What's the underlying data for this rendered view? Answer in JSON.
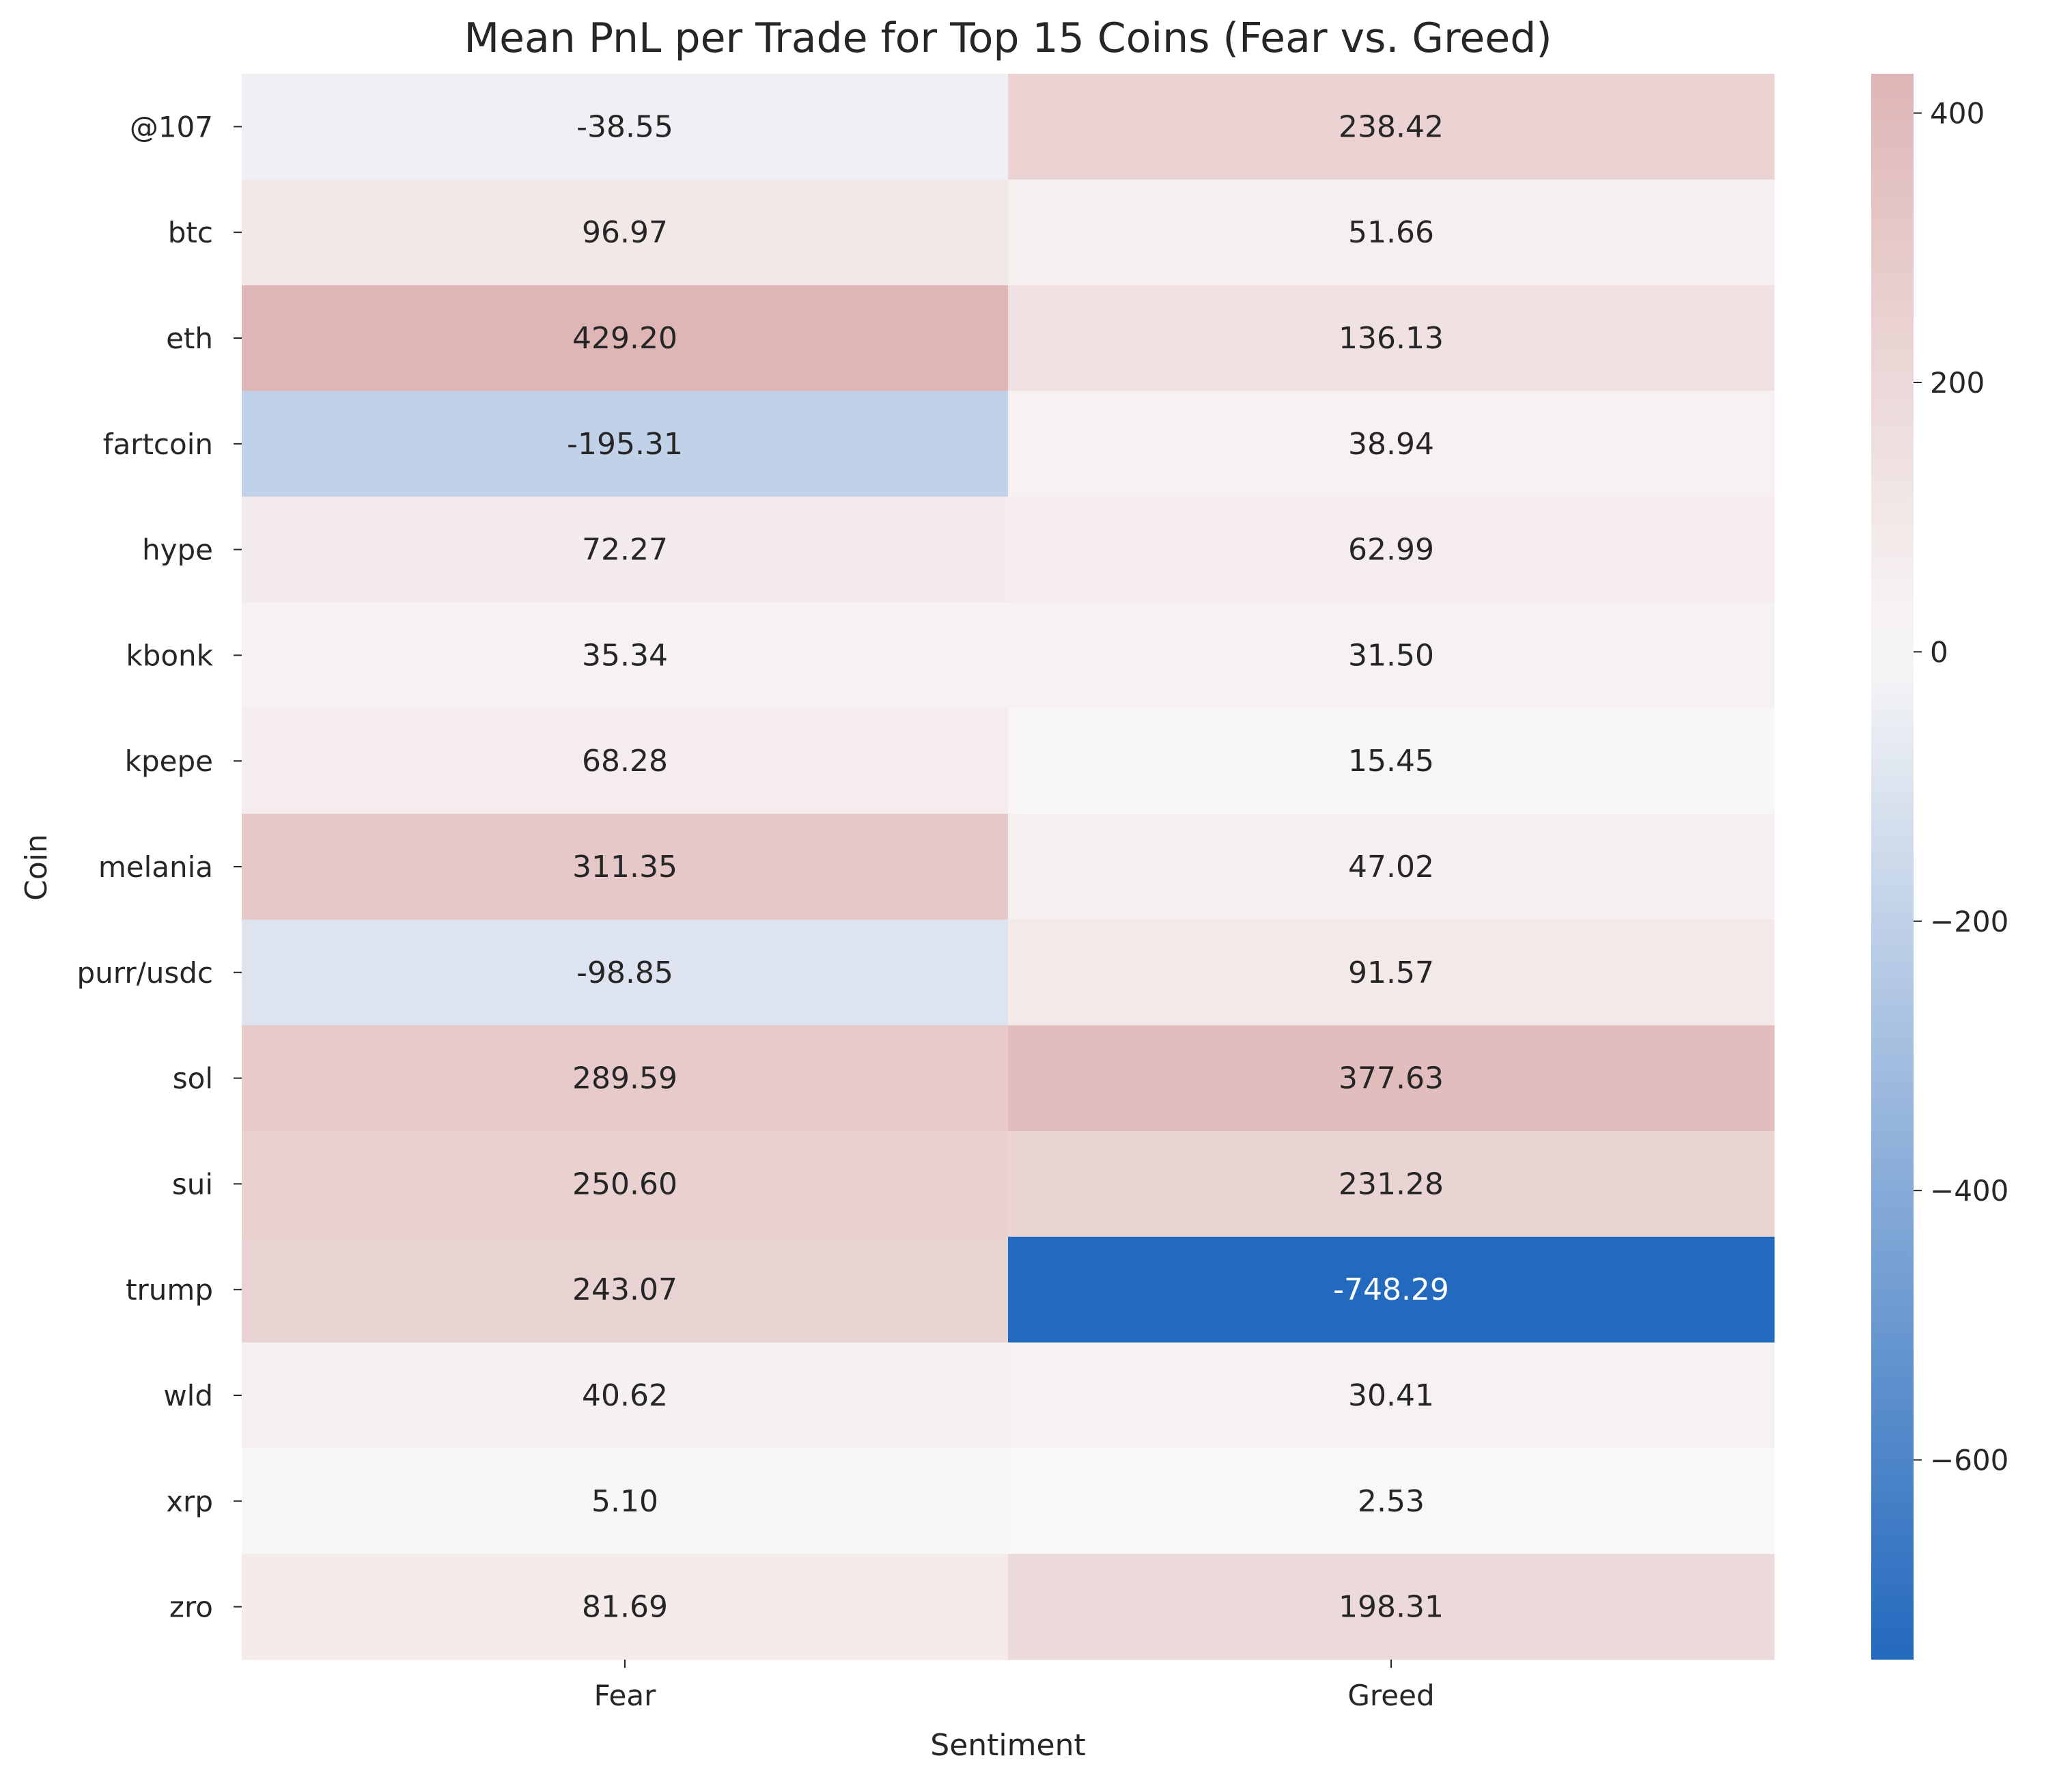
{
  "chart_data": {
    "type": "heatmap",
    "title": "Mean PnL per Trade for Top 15 Coins (Fear vs. Greed)",
    "xlabel": "Sentiment",
    "ylabel": "Coin",
    "x_categories": [
      "Fear",
      "Greed"
    ],
    "y_categories": [
      "@107",
      "btc",
      "eth",
      "fartcoin",
      "hype",
      "kbonk",
      "kpepe",
      "melania",
      "purr/usdc",
      "sol",
      "sui",
      "trump",
      "wld",
      "xrp",
      "zro"
    ],
    "values": [
      [
        -38.55,
        238.42
      ],
      [
        96.97,
        51.66
      ],
      [
        429.2,
        136.13
      ],
      [
        -195.31,
        38.94
      ],
      [
        72.27,
        62.99
      ],
      [
        35.34,
        31.5
      ],
      [
        68.28,
        15.45
      ],
      [
        311.35,
        47.02
      ],
      [
        -98.85,
        91.57
      ],
      [
        289.59,
        377.63
      ],
      [
        250.6,
        231.28
      ],
      [
        243.07,
        -748.29
      ],
      [
        40.62,
        30.41
      ],
      [
        5.1,
        2.53
      ],
      [
        81.69,
        198.31
      ]
    ],
    "value_labels": [
      [
        "-38.55",
        "238.42"
      ],
      [
        "96.97",
        "51.66"
      ],
      [
        "429.20",
        "136.13"
      ],
      [
        "-195.31",
        "38.94"
      ],
      [
        "72.27",
        "62.99"
      ],
      [
        "35.34",
        "31.50"
      ],
      [
        "68.28",
        "15.45"
      ],
      [
        "311.35",
        "47.02"
      ],
      [
        "-98.85",
        "91.57"
      ],
      [
        "289.59",
        "377.63"
      ],
      [
        "250.60",
        "231.28"
      ],
      [
        "243.07",
        "-748.29"
      ],
      [
        "40.62",
        "30.41"
      ],
      [
        "5.10",
        "2.53"
      ],
      [
        "81.69",
        "198.31"
      ]
    ],
    "colorbar": {
      "vmin": -748.29,
      "vmax": 429.2,
      "ticks": [
        400,
        200,
        0,
        -200,
        -400,
        -600
      ],
      "tick_labels": [
        "400",
        "200",
        "0",
        "−200",
        "−400",
        "−600"
      ],
      "colors": {
        "negative": "#2369bd",
        "center": "#f9f7f7",
        "positive": "#c98584"
      }
    }
  }
}
